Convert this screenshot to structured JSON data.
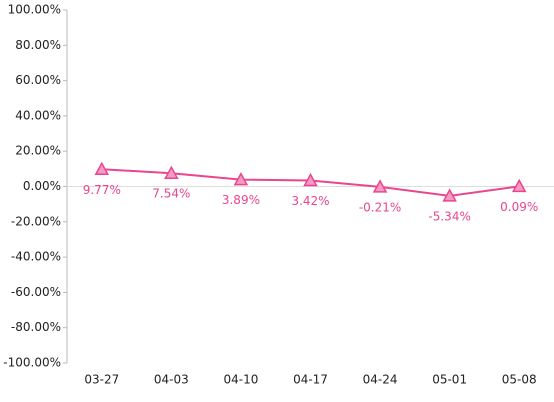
{
  "chart_data": {
    "type": "line",
    "categories": [
      "03-27",
      "04-03",
      "04-10",
      "04-17",
      "04-24",
      "05-01",
      "05-08"
    ],
    "series": [
      {
        "color": "#e8468f",
        "marker_fill": "#f49ac4",
        "values": [
          9.77,
          7.54,
          3.89,
          3.42,
          -0.21,
          -5.34,
          0.09
        ],
        "value_labels": [
          "9.77%",
          "7.54%",
          "3.89%",
          "3.42%",
          "-0.21%",
          "-5.34%",
          "0.09%"
        ]
      }
    ],
    "ylim": [
      -100,
      100
    ],
    "yticks": [
      {
        "value": -100,
        "label": "-100.00%"
      },
      {
        "value": -80,
        "label": "-80.00%"
      },
      {
        "value": -60,
        "label": "-60.00%"
      },
      {
        "value": -40,
        "label": "-40.00%"
      },
      {
        "value": -20,
        "label": "-20.00%"
      },
      {
        "value": 0,
        "label": "0.00%"
      },
      {
        "value": 20,
        "label": "20.00%"
      },
      {
        "value": 40,
        "label": "40.00%"
      },
      {
        "value": 60,
        "label": "60.00%"
      },
      {
        "value": 80,
        "label": "80.00%"
      },
      {
        "value": 100,
        "label": "100.00%"
      }
    ],
    "grid": false
  }
}
